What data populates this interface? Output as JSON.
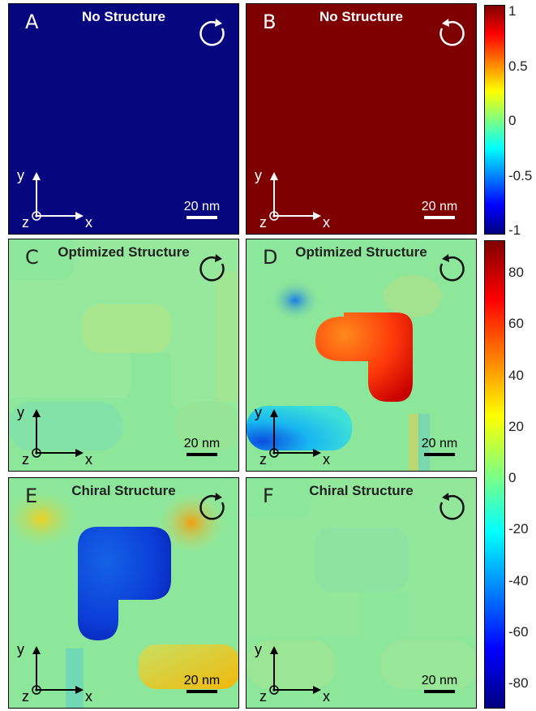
{
  "colorbar_top": {
    "ticks": [
      "1",
      "0.5",
      "0",
      "-0.5",
      "-1"
    ],
    "gradient": [
      "#800000",
      "#ff0000",
      "#ff8000",
      "#ffff00",
      "#80ff80",
      "#00ffff",
      "#0080ff",
      "#0000ff",
      "#000080"
    ]
  },
  "colorbar_bottom": {
    "ticks": [
      "80",
      "60",
      "40",
      "20",
      "0",
      "-20",
      "-40",
      "-60",
      "-80"
    ],
    "gradient": [
      "#800000",
      "#ff0000",
      "#ff8000",
      "#ffff00",
      "#80ff80",
      "#00ffff",
      "#0080ff",
      "#0000ff",
      "#000080"
    ]
  },
  "panels": [
    {
      "letter": "A",
      "title": "No Structure",
      "rotation": "clockwise",
      "scale": "20 nm",
      "ax_x": "x",
      "ax_y": "y",
      "ax_z": "z",
      "background": "#06067f"
    },
    {
      "letter": "B",
      "title": "No Structure",
      "rotation": "counterclockwise",
      "scale": "20 nm",
      "ax_x": "x",
      "ax_y": "y",
      "ax_z": "z",
      "background": "#7f0000"
    },
    {
      "letter": "C",
      "title": "Optimized Structure",
      "rotation": "clockwise",
      "scale": "20 nm",
      "ax_x": "x",
      "ax_y": "y",
      "ax_z": "z",
      "background": "#8ce79a"
    },
    {
      "letter": "D",
      "title": "Optimized Structure",
      "rotation": "counterclockwise",
      "scale": "20 nm",
      "ax_x": "x",
      "ax_y": "y",
      "ax_z": "z",
      "background": "#8ce79a"
    },
    {
      "letter": "E",
      "title": "Chiral Structure",
      "rotation": "clockwise",
      "scale": "20 nm",
      "ax_x": "x",
      "ax_y": "y",
      "ax_z": "z",
      "background": "#8ce79a"
    },
    {
      "letter": "F",
      "title": "Chiral Structure",
      "rotation": "counterclockwise",
      "scale": "20 nm",
      "ax_x": "x",
      "ax_y": "y",
      "ax_z": "z",
      "background": "#8ce79a"
    }
  ]
}
